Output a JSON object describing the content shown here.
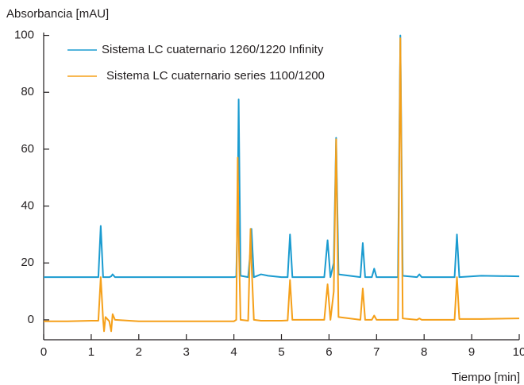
{
  "chart_data": {
    "type": "line",
    "y_label": "Absorbancia [mAU]",
    "x_label": "Tiempo [min]",
    "x": [
      0,
      0.5,
      1.0,
      1.15,
      1.2,
      1.25,
      1.27,
      1.3,
      1.38,
      1.42,
      1.45,
      1.5,
      2.0,
      3.0,
      4.0,
      4.05,
      4.08,
      4.1,
      4.14,
      4.3,
      4.35,
      4.37,
      4.42,
      4.57,
      4.72,
      5.0,
      5.13,
      5.18,
      5.23,
      5.9,
      5.97,
      6.03,
      6.1,
      6.15,
      6.2,
      6.66,
      6.71,
      6.76,
      6.9,
      6.95,
      7.0,
      7.45,
      7.5,
      7.55,
      7.85,
      7.9,
      7.95,
      8.64,
      8.69,
      8.74,
      9.2,
      10
    ],
    "series": [
      {
        "name": "Sistema LC cuaternario 1260/1220 Infinity",
        "color": "#1a9bd0",
        "values": [
          15,
          15,
          15,
          15,
          33,
          15,
          15,
          15,
          15,
          15.3,
          16,
          15,
          15,
          15,
          15,
          15.2,
          40,
          77.5,
          15.5,
          15,
          25,
          32,
          15,
          16,
          15.5,
          15,
          15,
          30,
          15,
          15,
          28,
          15,
          20,
          64,
          16,
          15,
          27,
          15,
          15,
          18,
          15,
          15,
          100,
          15.5,
          15,
          16,
          15,
          15,
          30,
          15,
          15.5,
          15.3
        ]
      },
      {
        "name": "Sistema LC cuaternario series 1100/1200",
        "color": "#f5a01a",
        "values": [
          -0.5,
          -0.5,
          -0.3,
          -0.3,
          15,
          0,
          -4,
          1,
          -0.5,
          -4,
          2,
          0,
          -0.5,
          -0.5,
          -0.5,
          0,
          57,
          30,
          0,
          -0.3,
          32,
          20,
          0,
          -0.3,
          -0.3,
          -0.3,
          -0.2,
          14,
          0,
          0,
          12.5,
          0,
          10,
          63.5,
          1,
          0,
          11,
          0,
          0,
          1.5,
          0,
          0,
          99,
          0.5,
          0,
          0.5,
          0,
          0,
          15,
          0.3,
          0.3,
          0.5
        ]
      }
    ],
    "xlim": [
      0,
      10
    ],
    "xticks": [
      0,
      1,
      2,
      3,
      4,
      5,
      6,
      7,
      8,
      9,
      10
    ],
    "ylim": [
      -7,
      101
    ],
    "yticks": [
      0,
      20,
      40,
      60,
      80,
      100
    ],
    "legend": "top-left"
  }
}
